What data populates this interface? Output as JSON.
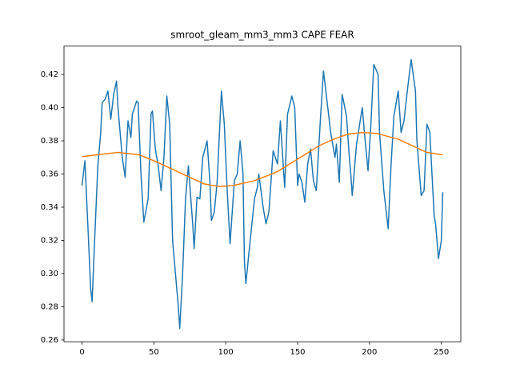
{
  "chart_data": {
    "type": "line",
    "title": "smroot_gleam_mm3_mm3 CAPE FEAR",
    "xlim": [
      -12.55,
      263.55
    ],
    "ylim": [
      0.2589,
      0.4371
    ],
    "xticks": [
      0,
      50,
      100,
      150,
      200,
      250
    ],
    "yticks": [
      0.26,
      0.28,
      {
        "value": 0.3,
        "label": "0.30"
      },
      0.32,
      0.34,
      0.36,
      0.38,
      {
        "value": 0.4,
        "label": "0.40"
      },
      0.42
    ],
    "series": [
      {
        "color": "#1f77b4",
        "x": [
          0,
          2,
          4,
          6,
          7,
          9,
          11,
          13,
          14,
          16,
          18,
          20,
          22,
          24,
          25,
          28,
          30,
          32,
          34,
          35,
          38,
          39,
          41,
          43,
          46,
          48,
          49,
          51,
          53,
          55,
          57,
          59,
          61,
          63,
          67,
          68,
          70,
          72,
          74,
          77,
          78,
          80,
          82,
          84,
          87,
          89,
          90,
          92,
          94,
          97,
          99,
          101,
          103,
          106,
          108,
          110,
          112,
          113,
          114,
          117,
          120,
          122,
          123,
          126,
          128,
          130,
          133,
          136,
          138,
          141,
          143,
          146,
          148,
          150,
          151,
          153,
          155,
          157,
          159,
          161,
          163,
          166,
          168,
          171,
          173,
          176,
          177,
          179,
          181,
          184,
          186,
          187,
          188,
          191,
          195,
          197,
          199,
          201,
          203,
          206,
          207,
          210,
          213,
          215,
          217,
          220,
          222,
          224,
          227,
          229,
          232,
          233,
          236,
          238,
          240,
          242,
          245,
          246,
          248,
          250,
          251
        ],
        "values": [
          0.353,
          0.368,
          0.33,
          0.291,
          0.283,
          0.325,
          0.365,
          0.385,
          0.403,
          0.405,
          0.41,
          0.393,
          0.408,
          0.416,
          0.4,
          0.37,
          0.358,
          0.392,
          0.382,
          0.396,
          0.404,
          0.403,
          0.36,
          0.331,
          0.345,
          0.396,
          0.398,
          0.375,
          0.365,
          0.35,
          0.37,
          0.407,
          0.39,
          0.32,
          0.28,
          0.267,
          0.3,
          0.345,
          0.365,
          0.33,
          0.315,
          0.346,
          0.345,
          0.37,
          0.38,
          0.355,
          0.332,
          0.337,
          0.355,
          0.41,
          0.39,
          0.35,
          0.318,
          0.356,
          0.36,
          0.38,
          0.36,
          0.307,
          0.294,
          0.32,
          0.345,
          0.352,
          0.36,
          0.34,
          0.33,
          0.337,
          0.374,
          0.366,
          0.392,
          0.352,
          0.396,
          0.407,
          0.4,
          0.353,
          0.36,
          0.355,
          0.343,
          0.366,
          0.375,
          0.356,
          0.35,
          0.395,
          0.422,
          0.4,
          0.385,
          0.37,
          0.378,
          0.355,
          0.408,
          0.395,
          0.37,
          0.36,
          0.347,
          0.378,
          0.4,
          0.38,
          0.362,
          0.39,
          0.426,
          0.42,
          0.385,
          0.35,
          0.327,
          0.365,
          0.395,
          0.41,
          0.385,
          0.392,
          0.415,
          0.429,
          0.41,
          0.38,
          0.347,
          0.35,
          0.39,
          0.385,
          0.335,
          0.33,
          0.309,
          0.32,
          0.349
        ]
      },
      {
        "color": "#ff7f0e",
        "x": [
          0,
          10,
          25,
          40,
          50,
          60,
          75,
          85,
          95,
          105,
          120,
          135,
          150,
          165,
          175,
          185,
          195,
          205,
          220,
          230,
          240,
          251
        ],
        "values": [
          0.3705,
          0.3715,
          0.373,
          0.3715,
          0.368,
          0.364,
          0.358,
          0.354,
          0.3525,
          0.353,
          0.356,
          0.361,
          0.369,
          0.377,
          0.381,
          0.384,
          0.385,
          0.3845,
          0.381,
          0.377,
          0.373,
          0.3715
        ]
      }
    ]
  }
}
